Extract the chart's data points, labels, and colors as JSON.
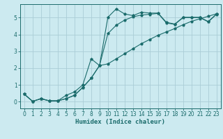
{
  "xlabel": "Humidex (Indice chaleur)",
  "bg_color": "#cceaf0",
  "grid_color": "#aacdd6",
  "line_color": "#1a6b6b",
  "xlim": [
    -0.5,
    23.5
  ],
  "ylim": [
    -0.4,
    5.8
  ],
  "xticks": [
    0,
    1,
    2,
    3,
    4,
    5,
    6,
    7,
    8,
    9,
    10,
    11,
    12,
    13,
    14,
    15,
    16,
    17,
    18,
    19,
    20,
    21,
    22,
    23
  ],
  "yticks": [
    0,
    1,
    2,
    3,
    4,
    5
  ],
  "series1_y": [
    0.45,
    0.02,
    0.18,
    0.05,
    0.05,
    0.18,
    0.38,
    0.85,
    1.4,
    2.15,
    5.02,
    5.52,
    5.22,
    5.12,
    5.32,
    5.27,
    5.27,
    4.72,
    4.62,
    5.02,
    5.02,
    5.02,
    4.77,
    5.22
  ],
  "series2_y": [
    0.45,
    0.02,
    0.18,
    0.05,
    0.05,
    0.38,
    0.58,
    1.0,
    2.55,
    2.15,
    4.05,
    4.55,
    4.85,
    5.05,
    5.15,
    5.2,
    5.25,
    4.68,
    4.6,
    5.0,
    5.0,
    5.0,
    4.75,
    5.2
  ],
  "series3_y": [
    0.45,
    0.02,
    0.18,
    0.05,
    0.05,
    0.18,
    0.38,
    0.85,
    1.4,
    2.15,
    2.25,
    2.55,
    2.85,
    3.15,
    3.45,
    3.7,
    3.95,
    4.15,
    4.35,
    4.58,
    4.78,
    4.93,
    5.08,
    5.23
  ]
}
